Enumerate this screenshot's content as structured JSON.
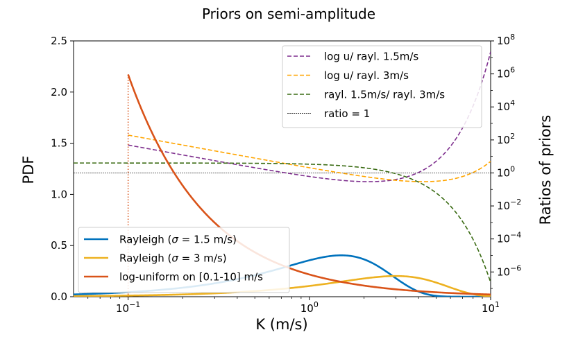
{
  "chart_data": {
    "type": "line",
    "title": "Priors on semi-amplitude",
    "xlabel": "K (m/s)",
    "ylabel_left": "PDF",
    "ylabel_right": "Ratios of priors",
    "x_scale": "log",
    "xlim": [
      0.05,
      10
    ],
    "ylim_left": [
      0.0,
      2.5
    ],
    "ylim_right_log10": [
      -7.5,
      8
    ],
    "x_ticks": [
      {
        "value": 0.1,
        "base": "10",
        "exp": "−1"
      },
      {
        "value": 1,
        "base": "10",
        "exp": "0"
      },
      {
        "value": 10,
        "base": "10",
        "exp": "1"
      }
    ],
    "y_ticks_left": [
      "0.0",
      "0.5",
      "1.0",
      "1.5",
      "2.0",
      "2.5"
    ],
    "y_ticks_right": [
      {
        "log10": -6,
        "base": "10",
        "exp": "−6"
      },
      {
        "log10": -4,
        "base": "10",
        "exp": "−4"
      },
      {
        "log10": -2,
        "base": "10",
        "exp": "−2"
      },
      {
        "log10": 0,
        "base": "10",
        "exp": "0"
      },
      {
        "log10": 2,
        "base": "10",
        "exp": "2"
      },
      {
        "log10": 4,
        "base": "10",
        "exp": "4"
      },
      {
        "log10": 6,
        "base": "10",
        "exp": "6"
      },
      {
        "log10": 8,
        "base": "10",
        "exp": "8"
      }
    ],
    "pdf_series": [
      {
        "name": "Rayleigh (σ = 1.5 m/s)",
        "legend_prefix": "Rayleigh (",
        "legend_sigma": "σ",
        "legend_suffix": " = 1.5 m/s)",
        "kind": "rayleigh",
        "sigma": 1.5,
        "color": "#0072bd"
      },
      {
        "name": "Rayleigh (σ = 3 m/s)",
        "legend_prefix": "Rayleigh (",
        "legend_sigma": "σ",
        "legend_suffix": " = 3 m/s)",
        "kind": "rayleigh",
        "sigma": 3,
        "color": "#edb120"
      },
      {
        "name": "log-uniform on [0.1-10] m/s",
        "legend_prefix": "log-uniform on [0.1-10] m/s",
        "legend_sigma": "",
        "legend_suffix": "",
        "kind": "loguniform",
        "range": [
          0.1,
          10
        ],
        "color": "#d95319"
      }
    ],
    "ratio_series": [
      {
        "name": "log u/ rayl. 1.5m/s",
        "num": "loguniform",
        "den_sigma": 1.5,
        "color": "#7e2f8e"
      },
      {
        "name": "log u/ rayl. 3m/s",
        "num": "loguniform",
        "den_sigma": 3,
        "color": "#ffa500"
      },
      {
        "name": "rayl. 1.5m/s/ rayl. 3m/s",
        "num_sigma": 1.5,
        "den_sigma": 3,
        "color": "#3a6b13"
      },
      {
        "name": "ratio = 1",
        "value": 1,
        "color": "#000000"
      }
    ],
    "legend_left_position": "lower-left",
    "legend_right_position": "upper-right"
  }
}
